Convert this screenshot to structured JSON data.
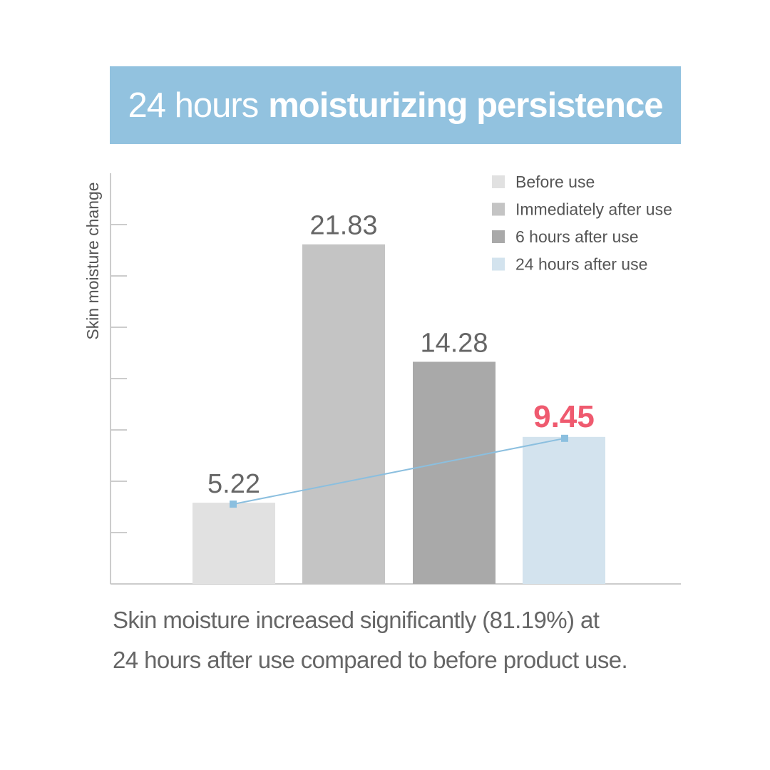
{
  "banner": {
    "title_light": "24 hours",
    "title_bold": "moisturizing persistence",
    "background": "#92c2df"
  },
  "caption": {
    "line1": "Skin moisture increased significantly (81.19%) at",
    "line2": "24 hours after use compared to before product use."
  },
  "chart_data": {
    "type": "bar",
    "ylabel": "Skin moisture change",
    "ylim": [
      0,
      26.4
    ],
    "y_tick_step": 3.3,
    "categories": [
      "Before use",
      "Immediately after use",
      "6 hours after use",
      "24 hours after use"
    ],
    "values": [
      5.22,
      21.83,
      14.28,
      9.45
    ],
    "value_labels": [
      "5.22",
      "21.83",
      "14.28",
      "9.45"
    ],
    "colors": [
      "#e1e1e1",
      "#c4c4c4",
      "#a9a9a9",
      "#d3e3ee"
    ],
    "highlight_color": "#ef5a6f",
    "highlight_index": 3,
    "trend_line": {
      "from_index": 0,
      "to_index": 3,
      "color": "#8bbfdf"
    },
    "legend_position": "top-right",
    "grid": false
  }
}
